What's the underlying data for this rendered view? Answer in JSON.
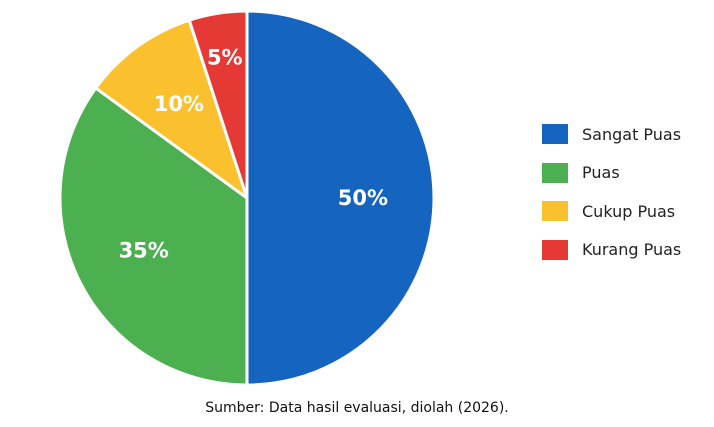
{
  "chart_data": {
    "type": "pie",
    "categories": [
      "Sangat Puas",
      "Puas",
      "Cukup Puas",
      "Kurang Puas"
    ],
    "values": [
      50,
      35,
      10,
      5
    ],
    "labels": [
      "50%",
      "35%",
      "10%",
      "5%"
    ],
    "colors": [
      "#1565c0",
      "#4caf50",
      "#fbc02d",
      "#e53935"
    ],
    "start_angle": "12 o'clock",
    "direction": "clockwise",
    "legend_position": "right"
  },
  "source_note": "Sumber: Data hasil evaluasi, diolah (2026)."
}
